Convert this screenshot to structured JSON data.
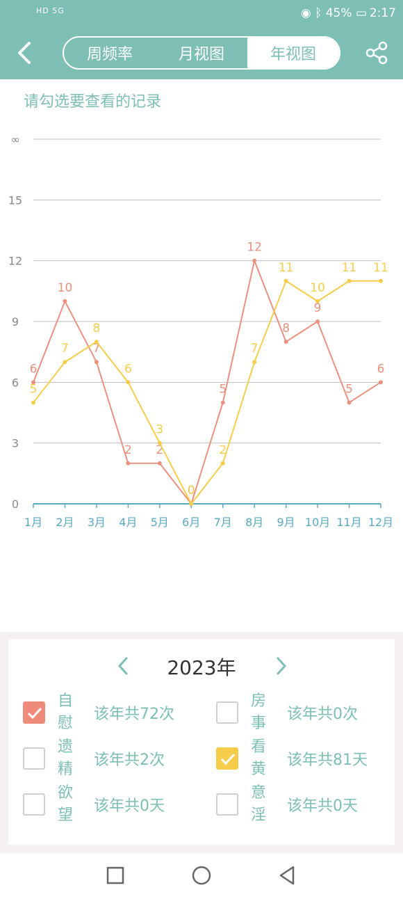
{
  "status_bar": {
    "left_text": "HD 5G",
    "battery": "45%",
    "time": "2:17"
  },
  "header": {
    "tabs": [
      {
        "label": "周频率",
        "active": false
      },
      {
        "label": "月视图",
        "active": false
      },
      {
        "label": "年视图",
        "active": true
      }
    ]
  },
  "hint": "请勾选要查看的记录",
  "chart_data": {
    "type": "line",
    "categories": [
      "1月",
      "2月",
      "3月",
      "4月",
      "5月",
      "6月",
      "7月",
      "8月",
      "9月",
      "10月",
      "11月",
      "12月"
    ],
    "y_ticks": [
      "0",
      "3",
      "6",
      "9",
      "12",
      "15",
      "∞"
    ],
    "ylim": [
      0,
      18
    ],
    "grid": true,
    "series": [
      {
        "values": [
          6,
          10,
          7,
          2,
          2,
          0,
          5,
          12,
          8,
          9,
          5,
          6
        ],
        "color": "#e8927f"
      },
      {
        "values": [
          5,
          7,
          8,
          6,
          3,
          0,
          2,
          7,
          11,
          10,
          11,
          11
        ],
        "color": "#f6cd4b"
      }
    ],
    "axis_color": "#5aa9c2"
  },
  "year_picker": {
    "year": "2023年"
  },
  "records": [
    {
      "label_top": "自",
      "label_bottom": "慰",
      "count": "该年共72次",
      "checked": true,
      "color": "#ef8b7b"
    },
    {
      "label_top": "房",
      "label_bottom": "事",
      "count": "该年共0次",
      "checked": false
    },
    {
      "label_top": "遗",
      "label_bottom": "精",
      "count": "该年共2次",
      "checked": false
    },
    {
      "label_top": "看",
      "label_bottom": "黄",
      "count": "该年共81天",
      "checked": true,
      "color": "#f6cd4b"
    },
    {
      "label_top": "欲",
      "label_bottom": "望",
      "count": "该年共0天",
      "checked": false
    },
    {
      "label_top": "意",
      "label_bottom": "淫",
      "count": "该年共0天",
      "checked": false
    }
  ],
  "colors": {
    "theme": "#7dbfb5",
    "series_red": "#e8927f",
    "series_yellow": "#f6cd4b"
  }
}
